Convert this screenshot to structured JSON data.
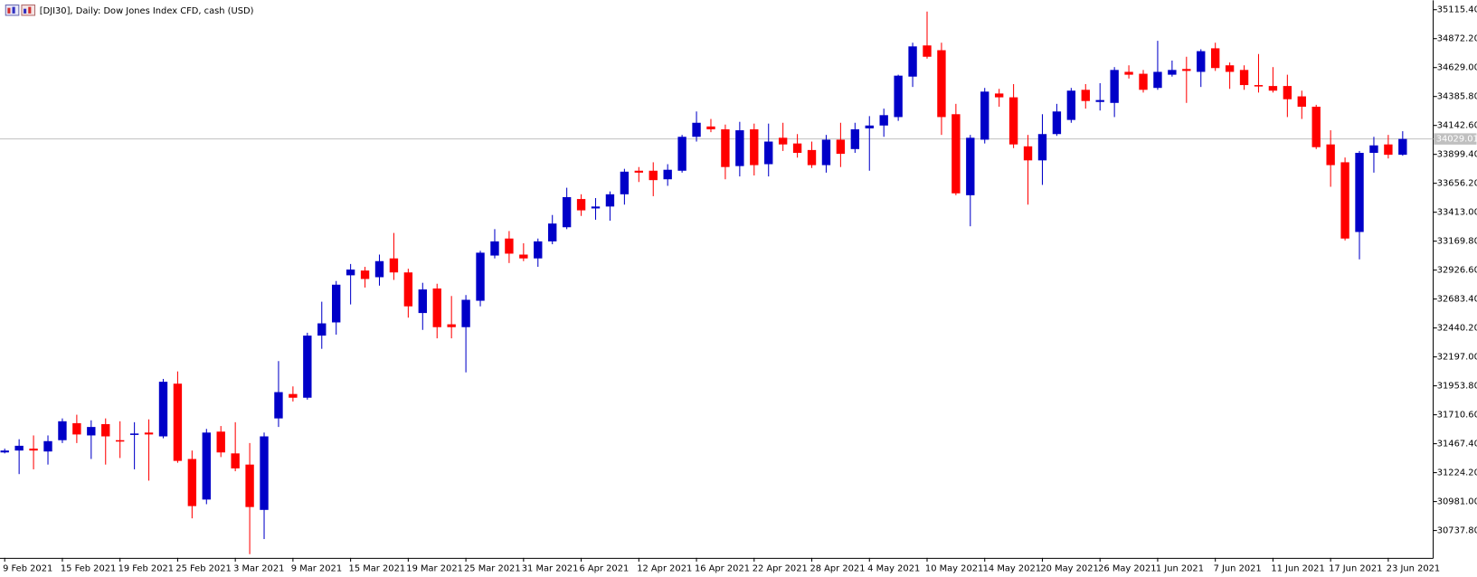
{
  "chart_data": {
    "type": "candlestick",
    "title": "[DJI30], Daily:  Dow Jones Index CFD, cash (USD)",
    "up_color": "#0000c8",
    "down_color": "#ff0000",
    "last_price_color": "#c0c0c0",
    "categories": [
      "9 Feb 2021",
      null,
      null,
      null,
      "15 Feb 2021",
      null,
      null,
      null,
      "19 Feb 2021",
      null,
      null,
      null,
      "25 Feb 2021",
      null,
      null,
      null,
      "3 Mar 2021",
      null,
      null,
      null,
      "9 Mar 2021",
      null,
      null,
      null,
      "15 Mar 2021",
      null,
      null,
      null,
      "19 Mar 2021",
      null,
      null,
      null,
      "25 Mar 2021",
      null,
      null,
      null,
      "31 Mar 2021",
      null,
      null,
      null,
      "6 Apr 2021",
      null,
      null,
      null,
      "12 Apr 2021",
      null,
      null,
      null,
      "16 Apr 2021",
      null,
      null,
      null,
      "22 Apr 2021",
      null,
      null,
      null,
      "28 Apr 2021",
      null,
      null,
      null,
      "4 May 2021",
      null,
      null,
      null,
      "10 May 2021",
      null,
      null,
      null,
      "14 May 2021",
      null,
      null,
      null,
      "20 May 2021",
      null,
      null,
      null,
      "26 May 2021",
      null,
      null,
      null,
      "1 Jun 2021",
      null,
      null,
      null,
      "7 Jun 2021",
      null,
      null,
      null,
      "11 Jun 2021",
      null,
      null,
      null,
      "17 Jun 2021",
      null,
      null,
      null,
      "23 Jun 2021",
      null
    ],
    "open": [
      31394,
      31410,
      31426,
      31402,
      31497,
      31640,
      31537,
      31632,
      31497,
      31545,
      31561,
      31529,
      31972,
      31339,
      30998,
      31569,
      31386,
      31292,
      30911,
      31680,
      31885,
      31854,
      32376,
      32487,
      32883,
      32923,
      32867,
      33025,
      32907,
      32566,
      32772,
      32471,
      32447,
      32669,
      33049,
      33192,
      33057,
      33025,
      33168,
      33287,
      33524,
      33445,
      33461,
      33564,
      33762,
      33762,
      33690,
      33762,
      34047,
      34134,
      34110,
      33801,
      34110,
      33817,
      34039,
      33991,
      33936,
      33809,
      34023,
      33944,
      34118,
      34142,
      34213,
      34553,
      34815,
      34775,
      34237,
      33556,
      34023,
      34411,
      34379,
      33967,
      33849,
      34070,
      34189,
      34442,
      34340,
      34332,
      34593,
      34577,
      34458,
      34569,
      34617,
      34593,
      34791,
      34648,
      34609,
      34482,
      34474,
      34474,
      34387,
      34300,
      33983,
      33833,
      33247,
      33912,
      33983,
      33896
    ],
    "high": [
      31426,
      31505,
      31537,
      31537,
      31680,
      31711,
      31664,
      31680,
      31656,
      31648,
      31672,
      32012,
      32075,
      31410,
      31592,
      31616,
      31648,
      31473,
      31561,
      32162,
      31949,
      32400,
      32661,
      32835,
      32978,
      32954,
      33057,
      33239,
      32938,
      32820,
      32812,
      32709,
      32717,
      33089,
      33271,
      33255,
      33152,
      33192,
      33390,
      33619,
      33564,
      33532,
      33588,
      33778,
      33793,
      33833,
      33817,
      34063,
      34260,
      34197,
      34150,
      34173,
      34158,
      34158,
      34165,
      34070,
      34007,
      34063,
      34165,
      34165,
      34221,
      34284,
      34569,
      34838,
      35100,
      34838,
      34324,
      34063,
      34458,
      34450,
      34490,
      34063,
      34237,
      34324,
      34458,
      34490,
      34498,
      34633,
      34648,
      34609,
      34854,
      34688,
      34720,
      34783,
      34838,
      34672,
      34648,
      34743,
      34633,
      34569,
      34435,
      34316,
      34102,
      33873,
      33928,
      34047,
      34063,
      34094
    ],
    "low": [
      31386,
      31212,
      31252,
      31292,
      31473,
      31473,
      31339,
      31292,
      31347,
      31252,
      31157,
      31513,
      31307,
      30840,
      30959,
      31355,
      31236,
      30539,
      30666,
      31608,
      31822,
      31838,
      32265,
      32384,
      32638,
      32780,
      32796,
      32844,
      32527,
      32424,
      32353,
      32353,
      32067,
      32622,
      33025,
      32986,
      33002,
      32954,
      33144,
      33271,
      33382,
      33350,
      33342,
      33477,
      33667,
      33548,
      33635,
      33746,
      34007,
      34086,
      33690,
      33714,
      33722,
      33714,
      33928,
      33872,
      33785,
      33746,
      33793,
      33912,
      33762,
      34047,
      34181,
      34466,
      34704,
      34063,
      33556,
      33295,
      33991,
      34300,
      33952,
      33477,
      33643,
      34055,
      34165,
      34284,
      34268,
      34213,
      34537,
      34419,
      34442,
      34553,
      34332,
      34466,
      34601,
      34450,
      34442,
      34419,
      34419,
      34213,
      34197,
      33944,
      33627,
      33176,
      33017,
      33746,
      33865,
      33888
    ],
    "close": [
      31410,
      31450,
      31410,
      31489,
      31656,
      31545,
      31608,
      31529,
      31489,
      31553,
      31545,
      31988,
      31323,
      30943,
      31561,
      31394,
      31260,
      30935,
      31529,
      31901,
      31854,
      32376,
      32479,
      32804,
      32931,
      32852,
      33002,
      32907,
      32622,
      32764,
      32447,
      32447,
      32677,
      33073,
      33168,
      33065,
      33025,
      33168,
      33318,
      33540,
      33429,
      33461,
      33564,
      33754,
      33746,
      33683,
      33770,
      34047,
      34165,
      34110,
      33793,
      34102,
      33809,
      34007,
      33983,
      33912,
      33809,
      34023,
      33904,
      34110,
      34142,
      34229,
      34561,
      34807,
      34720,
      34213,
      33572,
      34039,
      34427,
      34379,
      33983,
      33849,
      34070,
      34260,
      34435,
      34348,
      34356,
      34609,
      34569,
      34442,
      34593,
      34609,
      34601,
      34767,
      34625,
      34593,
      34482,
      34474,
      34435,
      34363,
      34300,
      33960,
      33809,
      33192,
      33912,
      33975,
      33896,
      34029.01
    ],
    "last_price": 34029.01,
    "ylim": [
      30507.7,
      35194.6
    ],
    "yticks": [
      {
        "value": 35115.4,
        "label": "35115.40"
      },
      {
        "value": 34872.2,
        "label": "34872.20"
      },
      {
        "value": 34629.0,
        "label": "34629.00"
      },
      {
        "value": 34385.8,
        "label": "34385.80"
      },
      {
        "value": 34142.6,
        "label": "34142.60"
      },
      {
        "value": 33899.4,
        "label": "33899.40"
      },
      {
        "value": 33656.2,
        "label": "33656.20"
      },
      {
        "value": 33413.0,
        "label": "33413.00"
      },
      {
        "value": 33169.8,
        "label": "33169.80"
      },
      {
        "value": 32926.6,
        "label": "32926.60"
      },
      {
        "value": 32683.4,
        "label": "32683.40"
      },
      {
        "value": 32440.2,
        "label": "32440.20"
      },
      {
        "value": 32197.0,
        "label": "32197.00"
      },
      {
        "value": 31953.8,
        "label": "31953.80"
      },
      {
        "value": 31710.6,
        "label": "31710.60"
      },
      {
        "value": 31467.4,
        "label": "31467.40"
      },
      {
        "value": 31224.2,
        "label": "31224.20"
      },
      {
        "value": 30981.0,
        "label": "30981.00"
      },
      {
        "value": 30737.8,
        "label": "30737.80"
      }
    ]
  }
}
